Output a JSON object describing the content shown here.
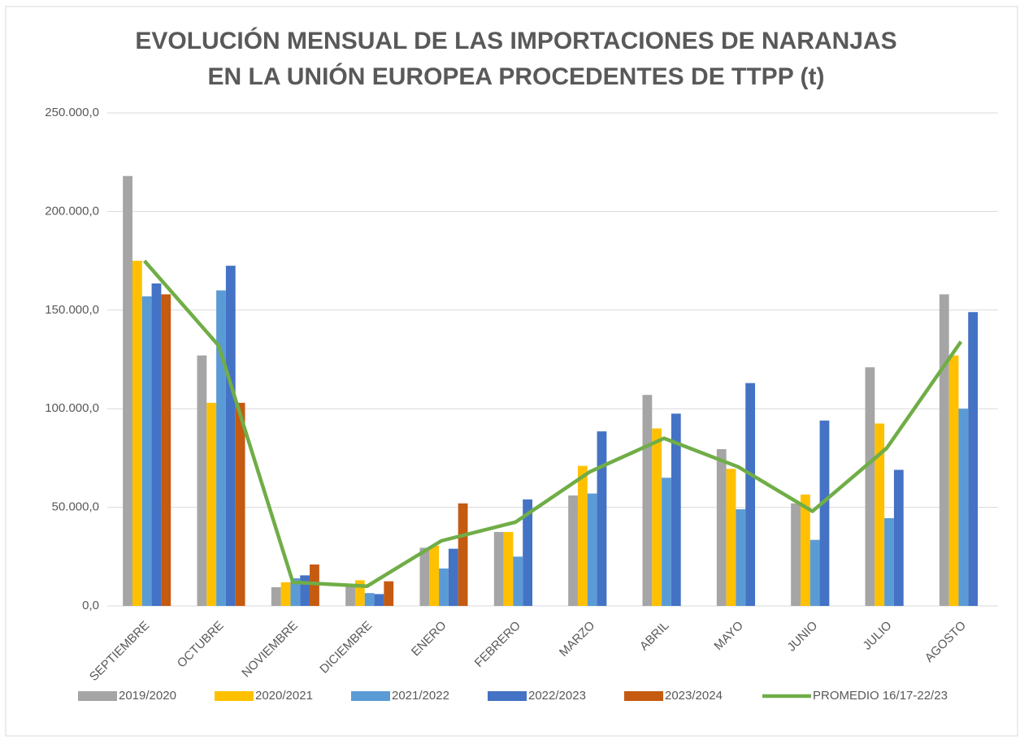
{
  "chart_data": {
    "type": "bar",
    "title": [
      "EVOLUCIÓN MENSUAL DE LAS IMPORTACIONES DE NARANJAS",
      "EN LA UNIÓN EUROPEA PROCEDENTES DE TTPP (t)"
    ],
    "categories": [
      "SEPTIEMBRE",
      "OCTUBRE",
      "NOVIEMBRE",
      "DICIEMBRE",
      "ENERO",
      "FEBRERO",
      "MARZO",
      "ABRIL",
      "MAYO",
      "JUNIO",
      "JULIO",
      "AGOSTO"
    ],
    "series": [
      {
        "name": "2019/2020",
        "color": "#a5a5a5",
        "type": "bar",
        "values": [
          218000,
          127000,
          9500,
          11000,
          29500,
          37500,
          56000,
          107000,
          79500,
          52000,
          121000,
          158000
        ]
      },
      {
        "name": "2020/2021",
        "color": "#ffc000",
        "type": "bar",
        "values": [
          175000,
          103000,
          12000,
          13000,
          30500,
          37500,
          71000,
          90000,
          69500,
          56500,
          92500,
          127000
        ]
      },
      {
        "name": "2021/2022",
        "color": "#5b9bd5",
        "type": "bar",
        "values": [
          157000,
          160000,
          14000,
          6500,
          19000,
          25000,
          57000,
          65000,
          49000,
          33500,
          44500,
          100000
        ]
      },
      {
        "name": "2022/2023",
        "color": "#4472c4",
        "type": "bar",
        "values": [
          163500,
          172500,
          15500,
          6000,
          29000,
          54000,
          88500,
          97500,
          113000,
          94000,
          69000,
          149000
        ]
      },
      {
        "name": "2023/2024",
        "color": "#c55a11",
        "type": "bar",
        "values": [
          158000,
          103000,
          21000,
          12500,
          52000,
          null,
          null,
          null,
          null,
          null,
          null,
          null
        ]
      },
      {
        "name": "PROMEDIO 16/17-22/23",
        "color": "#70ad47",
        "type": "line",
        "values": [
          175000,
          132000,
          12000,
          10000,
          33000,
          42500,
          68000,
          85000,
          70500,
          48000,
          80000,
          134000
        ]
      }
    ],
    "ylim": [
      0,
      250000
    ],
    "yticks": [
      {
        "value": 0,
        "label": "0,0"
      },
      {
        "value": 50000,
        "label": "50.000,0"
      },
      {
        "value": 100000,
        "label": "100.000,0"
      },
      {
        "value": 150000,
        "label": "150.000,0"
      },
      {
        "value": 200000,
        "label": "200.000,0"
      },
      {
        "value": 250000,
        "label": "250.000,0"
      }
    ],
    "grid": true,
    "legend": "bottom"
  }
}
